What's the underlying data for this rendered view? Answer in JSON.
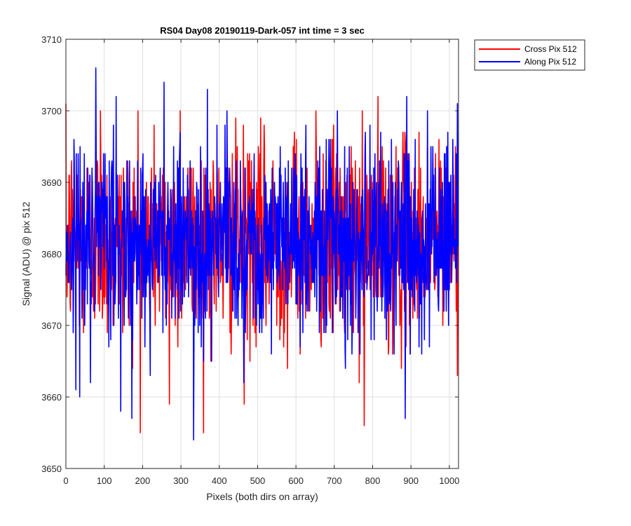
{
  "chart_data": {
    "type": "line",
    "title": "RS04 Day08 20190119-Dark-057 int time = 3 sec",
    "xlabel": "Pixels (both dirs on array)",
    "ylabel": "Signal (ADU) @ pix 512",
    "xlim": [
      0,
      1024
    ],
    "ylim": [
      3650,
      3710
    ],
    "xticks": [
      0,
      100,
      200,
      300,
      400,
      500,
      600,
      700,
      800,
      900,
      1000
    ],
    "yticks": [
      3650,
      3660,
      3670,
      3680,
      3690,
      3700,
      3710
    ],
    "grid": true,
    "legend_position": "outside-top-right",
    "noise_model": {
      "n_points": 1024,
      "mean": 3682,
      "std": 7
    },
    "series": [
      {
        "name": "Cross Pix 512",
        "color": "#ff0000",
        "highlights": [
          {
            "x": 90,
            "y": 3700
          },
          {
            "x": 188,
            "y": 3700
          },
          {
            "x": 298,
            "y": 3700
          },
          {
            "x": 652,
            "y": 3700
          },
          {
            "x": 270,
            "y": 3659
          },
          {
            "x": 778,
            "y": 3656
          },
          {
            "x": 465,
            "y": 3659
          }
        ]
      },
      {
        "name": "Along Pix 512",
        "color": "#0000ff",
        "highlights": [
          {
            "x": 333,
            "y": 3707
          },
          {
            "x": 256,
            "y": 3704
          },
          {
            "x": 369,
            "y": 3703
          },
          {
            "x": 333,
            "y": 3654
          },
          {
            "x": 143,
            "y": 3658
          },
          {
            "x": 885,
            "y": 3657
          },
          {
            "x": 64,
            "y": 3662
          }
        ]
      }
    ]
  }
}
